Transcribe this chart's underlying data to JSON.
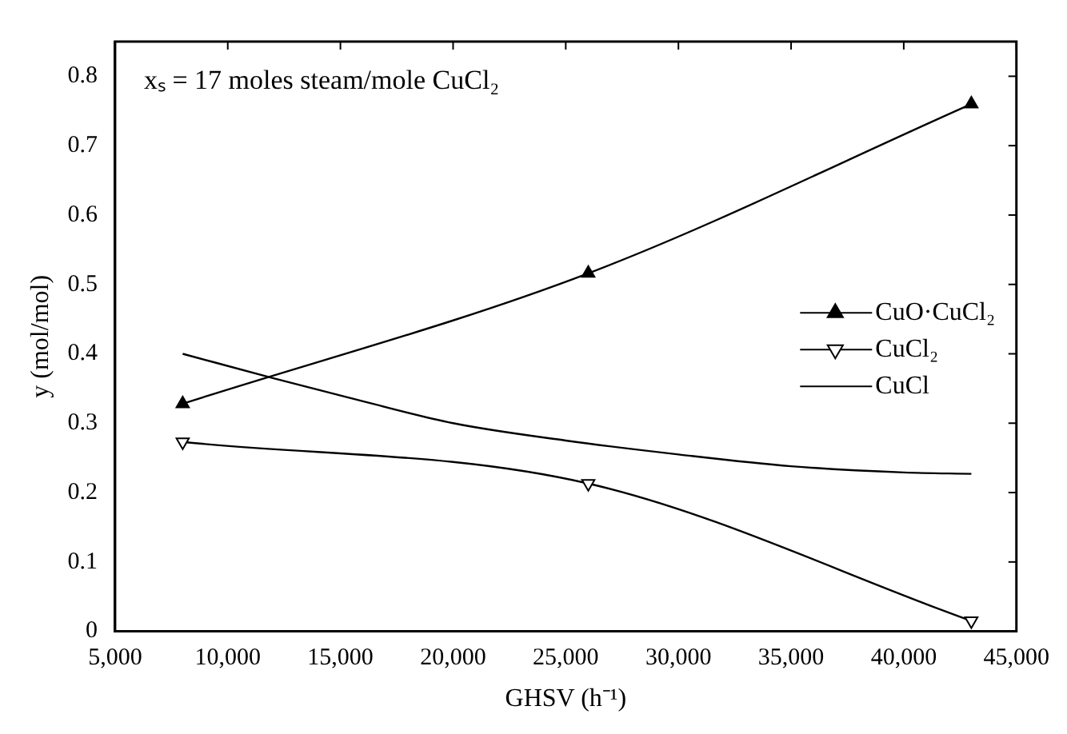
{
  "chart_data": {
    "type": "line",
    "xlabel": "GHSV (h⁻¹)",
    "ylabel": "y (mol/mol)",
    "annotations": [
      "xₛ = 17 moles steam/mole CuCl₂"
    ],
    "xlim": [
      5000,
      45000
    ],
    "xticks": [
      {
        "value": 5000,
        "label": "5,000"
      },
      {
        "value": 10000,
        "label": "10,000"
      },
      {
        "value": 15000,
        "label": "15,000"
      },
      {
        "value": 20000,
        "label": "20,000"
      },
      {
        "value": 25000,
        "label": "25,000"
      },
      {
        "value": 30000,
        "label": "30,000"
      },
      {
        "value": 35000,
        "label": "35,000"
      },
      {
        "value": 40000,
        "label": "40,000"
      },
      {
        "value": 45000,
        "label": "45,000"
      }
    ],
    "ylim": [
      0,
      0.85
    ],
    "yticks": [
      0,
      0.1,
      0.2,
      0.3,
      0.4,
      0.5,
      0.6,
      0.7,
      0.8
    ],
    "grid": false,
    "legend": "right",
    "line_style": "solid",
    "series": [
      {
        "name": "CuO·CuCl₂",
        "color": "#000000",
        "marker": "triangle",
        "x": [
          8000,
          26000,
          43000
        ],
        "values": [
          0.328,
          0.516,
          0.76
        ]
      },
      {
        "name": "CuCl₂",
        "color": "#000000",
        "marker": "triangle-down",
        "x": [
          8000,
          26000,
          43000
        ],
        "values": [
          0.273,
          0.213,
          0.015
        ]
      },
      {
        "name": "CuCl",
        "color": "#000000",
        "marker": "none",
        "x": [
          8000,
          12000,
          15000,
          20000,
          25000,
          30000,
          35000,
          40000,
          43000
        ],
        "values": [
          0.4,
          0.365,
          0.34,
          0.3,
          0.275,
          0.255,
          0.238,
          0.229,
          0.227
        ]
      }
    ]
  }
}
